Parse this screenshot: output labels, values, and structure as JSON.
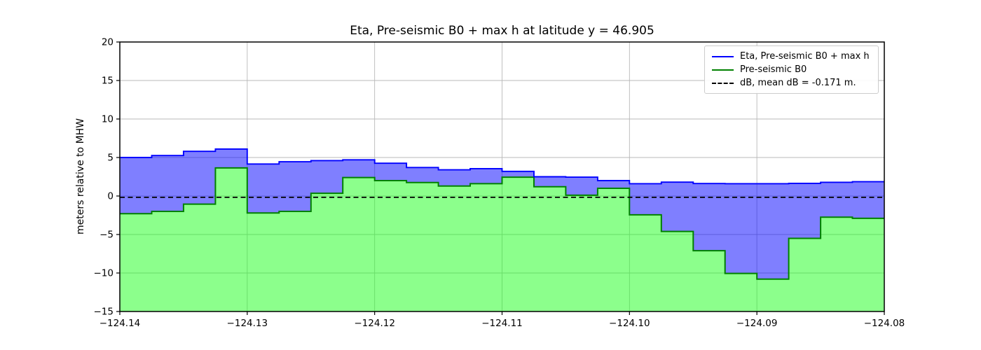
{
  "chart_data": {
    "type": "area",
    "title": "Eta, Pre-seismic B0 + max h at latitude y = 46.905",
    "xlabel": "",
    "ylabel": "meters relative to MHW",
    "xlim": [
      -124.14,
      -124.08
    ],
    "ylim": [
      -15,
      20
    ],
    "grid": true,
    "grid_color": "#b8b8b8",
    "xticks": [
      -124.14,
      -124.13,
      -124.12,
      -124.11,
      -124.1,
      -124.09,
      -124.08
    ],
    "xtick_labels": [
      "−124.14",
      "−124.13",
      "−124.12",
      "−124.11",
      "−124.10",
      "−124.09",
      "−124.08"
    ],
    "yticks": [
      -15,
      -10,
      -5,
      0,
      5,
      10,
      15,
      20
    ],
    "ytick_labels": [
      "−15",
      "−10",
      "−5",
      "0",
      "5",
      "10",
      "15",
      "20"
    ],
    "x_edges": [
      -124.14,
      -124.1375,
      -124.135,
      -124.1325,
      -124.13,
      -124.1275,
      -124.125,
      -124.1225,
      -124.12,
      -124.1175,
      -124.115,
      -124.1125,
      -124.11,
      -124.1075,
      -124.105,
      -124.1025,
      -124.1,
      -124.0975,
      -124.095,
      -124.0925,
      -124.09,
      -124.0875,
      -124.085,
      -124.0825,
      -124.08
    ],
    "series": [
      {
        "name": "Eta, Pre-seismic B0 + max h",
        "style": "step-fill-between-b0",
        "line_color": "#0000ff",
        "fill_color": "#0000ff",
        "fill_opacity": 0.5,
        "values": [
          5.0,
          5.25,
          5.8,
          6.1,
          4.15,
          4.45,
          4.6,
          4.7,
          4.25,
          3.7,
          3.4,
          3.55,
          3.2,
          2.5,
          2.45,
          2.0,
          1.6,
          1.8,
          1.62,
          1.6,
          1.6,
          1.65,
          1.78,
          1.85
        ]
      },
      {
        "name": "Pre-seismic B0",
        "style": "step-fill-to-bottom",
        "line_color": "#008000",
        "fill_color": "#19ff19",
        "fill_opacity": 0.5,
        "values": [
          -2.3,
          -2.0,
          -1.05,
          3.65,
          -2.2,
          -2.0,
          0.35,
          2.4,
          2.0,
          1.75,
          1.3,
          1.6,
          2.45,
          1.2,
          0.1,
          1.0,
          -2.45,
          -4.6,
          -7.1,
          -10.05,
          -10.8,
          -5.5,
          -2.75,
          -2.9
        ]
      },
      {
        "name": "dB, mean dB = -0.171 m.",
        "style": "dashed-hline",
        "line_color": "#000000",
        "value": -0.171
      }
    ],
    "legend": {
      "position": "upper-right",
      "items": [
        {
          "label": "Eta, Pre-seismic B0 + max h",
          "color": "#0000ff",
          "dash": "solid"
        },
        {
          "label": "Pre-seismic B0",
          "color": "#008000",
          "dash": "solid"
        },
        {
          "label": "dB, mean dB = -0.171 m.",
          "color": "#000000",
          "dash": "dashed"
        }
      ]
    }
  }
}
